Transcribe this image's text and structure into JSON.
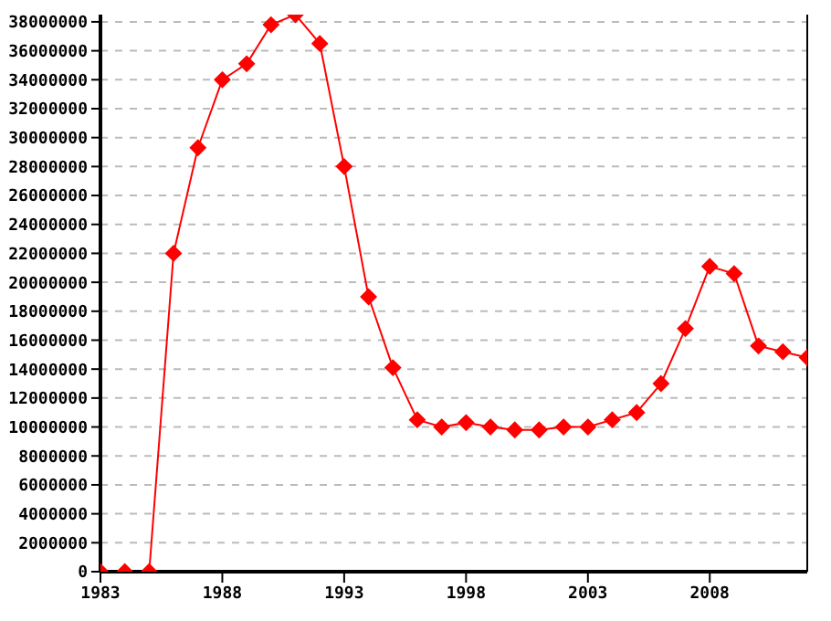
{
  "chart_data": {
    "type": "line",
    "x": [
      1983,
      1984,
      1985,
      1986,
      1987,
      1988,
      1989,
      1990,
      1991,
      1992,
      1993,
      1994,
      1995,
      1996,
      1997,
      1998,
      1999,
      2000,
      2001,
      2002,
      2003,
      2004,
      2005,
      2006,
      2007,
      2008,
      2009,
      2010,
      2011,
      2012
    ],
    "series": [
      {
        "color": "#ff0000",
        "values": [
          0,
          0,
          0,
          22000000,
          29300000,
          34000000,
          35100000,
          37800000,
          38500000,
          36500000,
          28000000,
          19000000,
          14100000,
          10500000,
          10000000,
          10300000,
          10000000,
          9800000,
          9800000,
          10000000,
          10000000,
          10500000,
          11000000,
          13000000,
          16800000,
          21100000,
          20600000,
          15600000,
          15200000,
          14800000
        ]
      }
    ],
    "xlim": [
      1983,
      2012
    ],
    "xticks": [
      1983,
      1988,
      1993,
      1998,
      2003,
      2008
    ],
    "ylim": [
      0,
      38500000
    ],
    "yticks": [
      0,
      2000000,
      4000000,
      6000000,
      8000000,
      10000000,
      12000000,
      14000000,
      16000000,
      18000000,
      20000000,
      22000000,
      24000000,
      26000000,
      28000000,
      30000000,
      32000000,
      34000000,
      36000000,
      38000000
    ],
    "grid": "y",
    "marker": "diamond",
    "line_style": "solid"
  }
}
